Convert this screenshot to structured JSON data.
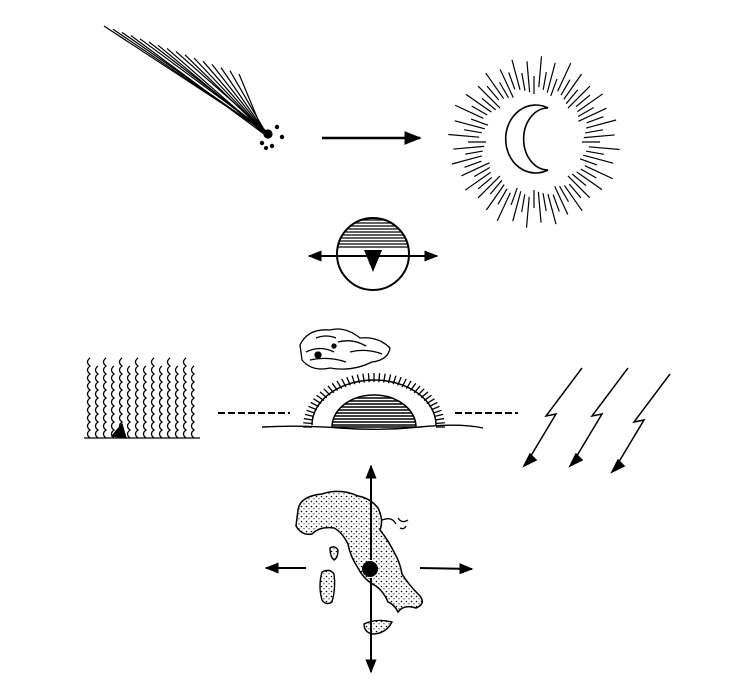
{
  "diagram": {
    "ink_color": "#000000",
    "background_color": "#ffffff",
    "panels": [
      {
        "id": "comet",
        "icon": "comet-icon"
      },
      {
        "id": "sun-moon",
        "icon": "sun-with-crescent-moon-icon"
      },
      {
        "id": "globe",
        "icon": "globe-with-axis-icon"
      },
      {
        "id": "fire",
        "icon": "flames-icon"
      },
      {
        "id": "sunrise",
        "icon": "rising-sun-under-clouds-icon"
      },
      {
        "id": "lightning",
        "icon": "lightning-bolts-icon"
      },
      {
        "id": "italy-map",
        "icon": "map-of-italy-icon"
      }
    ],
    "arrows": [
      {
        "id": "comet-to-sun",
        "direction": "right"
      },
      {
        "id": "globe-axis",
        "direction": "left-right"
      },
      {
        "id": "map-north",
        "direction": "up"
      },
      {
        "id": "map-south",
        "direction": "down"
      },
      {
        "id": "map-west",
        "direction": "left"
      },
      {
        "id": "map-east",
        "direction": "right"
      }
    ]
  }
}
